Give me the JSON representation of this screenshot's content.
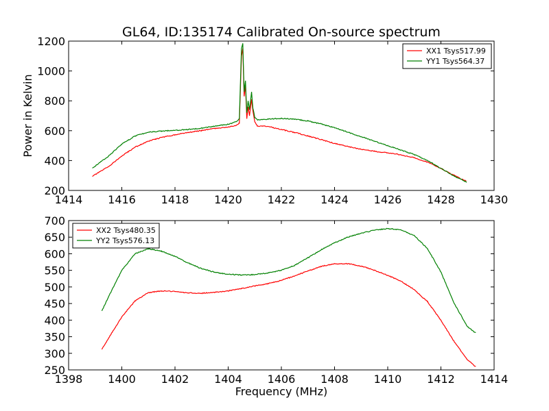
{
  "figure": {
    "title": "GL64, ID:135174 Calibrated On-source spectrum",
    "xlabel": "Frequency (MHz)",
    "ylabel": "Power in Kelvin"
  },
  "chart_data": [
    {
      "type": "line",
      "title": "GL64, ID:135174 Calibrated On-source spectrum",
      "ylabel": "Power in Kelvin",
      "xlabel": "",
      "xlim": [
        1414,
        1430
      ],
      "ylim": [
        200,
        1200
      ],
      "xticks": [
        1414,
        1416,
        1418,
        1420,
        1422,
        1424,
        1426,
        1428,
        1430
      ],
      "yticks": [
        200,
        400,
        600,
        800,
        1000,
        1200
      ],
      "legend_position": "top-right",
      "grid": false,
      "series": [
        {
          "name": "XX1 Tsys517.99",
          "color": "#ff0000",
          "x": [
            1414.9,
            1415.5,
            1416.0,
            1416.5,
            1417.0,
            1417.5,
            1418.0,
            1418.5,
            1419.0,
            1419.5,
            1420.0,
            1420.3,
            1420.42,
            1420.5,
            1420.55,
            1420.6,
            1420.65,
            1420.7,
            1420.75,
            1420.8,
            1420.88,
            1420.93,
            1421.0,
            1421.1,
            1421.3,
            1421.5,
            1422.0,
            1422.5,
            1423.0,
            1423.5,
            1424.0,
            1424.5,
            1425.0,
            1425.5,
            1426.0,
            1426.5,
            1427.0,
            1427.5,
            1428.0,
            1428.5,
            1428.95
          ],
          "values": [
            295,
            360,
            430,
            490,
            530,
            555,
            573,
            588,
            602,
            615,
            625,
            635,
            650,
            1100,
            1150,
            830,
            900,
            680,
            760,
            700,
            810,
            730,
            660,
            630,
            632,
            628,
            608,
            588,
            565,
            540,
            515,
            495,
            475,
            462,
            452,
            438,
            418,
            390,
            348,
            300,
            262
          ]
        },
        {
          "name": "YY1 Tsys564.37",
          "color": "#008000",
          "x": [
            1414.9,
            1415.5,
            1416.0,
            1416.5,
            1417.0,
            1417.5,
            1418.0,
            1418.5,
            1419.0,
            1419.5,
            1420.0,
            1420.3,
            1420.42,
            1420.5,
            1420.55,
            1420.6,
            1420.65,
            1420.7,
            1420.75,
            1420.8,
            1420.88,
            1420.93,
            1421.0,
            1421.1,
            1421.3,
            1421.5,
            1422.0,
            1422.5,
            1423.0,
            1423.5,
            1424.0,
            1424.5,
            1425.0,
            1425.5,
            1426.0,
            1426.5,
            1427.0,
            1427.5,
            1428.0,
            1428.5,
            1428.95
          ],
          "values": [
            350,
            430,
            510,
            565,
            590,
            598,
            603,
            608,
            618,
            630,
            643,
            660,
            680,
            1150,
            1185,
            860,
            935,
            720,
            800,
            740,
            860,
            750,
            690,
            672,
            675,
            678,
            682,
            678,
            665,
            645,
            620,
            590,
            560,
            530,
            500,
            470,
            440,
            400,
            348,
            295,
            258
          ]
        }
      ]
    },
    {
      "type": "line",
      "title": "",
      "xlabel": "Frequency (MHz)",
      "ylabel": "",
      "xlim": [
        1398,
        1414
      ],
      "ylim": [
        250,
        700
      ],
      "xticks": [
        1398,
        1400,
        1402,
        1404,
        1406,
        1408,
        1410,
        1412,
        1414
      ],
      "yticks": [
        250,
        300,
        350,
        400,
        450,
        500,
        550,
        600,
        650,
        700
      ],
      "legend_position": "top-left",
      "grid": false,
      "series": [
        {
          "name": "XX2 Tsys480.35",
          "color": "#ff0000",
          "x": [
            1399.25,
            1399.5,
            1400.0,
            1400.5,
            1401.0,
            1401.5,
            1402.0,
            1402.5,
            1403.0,
            1403.5,
            1404.0,
            1404.5,
            1405.0,
            1405.5,
            1406.0,
            1406.5,
            1407.0,
            1407.5,
            1408.0,
            1408.5,
            1409.0,
            1409.5,
            1410.0,
            1410.5,
            1411.0,
            1411.5,
            1412.0,
            1412.5,
            1413.0,
            1413.3
          ],
          "values": [
            312,
            345,
            410,
            458,
            483,
            488,
            486,
            482,
            481,
            484,
            488,
            495,
            503,
            510,
            520,
            533,
            548,
            562,
            570,
            570,
            563,
            550,
            535,
            517,
            492,
            455,
            400,
            335,
            280,
            260
          ]
        },
        {
          "name": "YY2 Tsys576.13",
          "color": "#008000",
          "x": [
            1399.25,
            1399.5,
            1400.0,
            1400.5,
            1401.0,
            1401.5,
            1402.0,
            1402.5,
            1403.0,
            1403.5,
            1404.0,
            1404.5,
            1405.0,
            1405.5,
            1406.0,
            1406.5,
            1407.0,
            1407.5,
            1408.0,
            1408.5,
            1409.0,
            1409.5,
            1410.0,
            1410.5,
            1411.0,
            1411.5,
            1412.0,
            1412.5,
            1413.0,
            1413.3
          ],
          "values": [
            428,
            470,
            550,
            600,
            615,
            608,
            592,
            572,
            555,
            544,
            538,
            536,
            537,
            542,
            550,
            565,
            588,
            612,
            633,
            650,
            662,
            671,
            676,
            672,
            655,
            615,
            545,
            450,
            380,
            362
          ]
        }
      ]
    }
  ]
}
